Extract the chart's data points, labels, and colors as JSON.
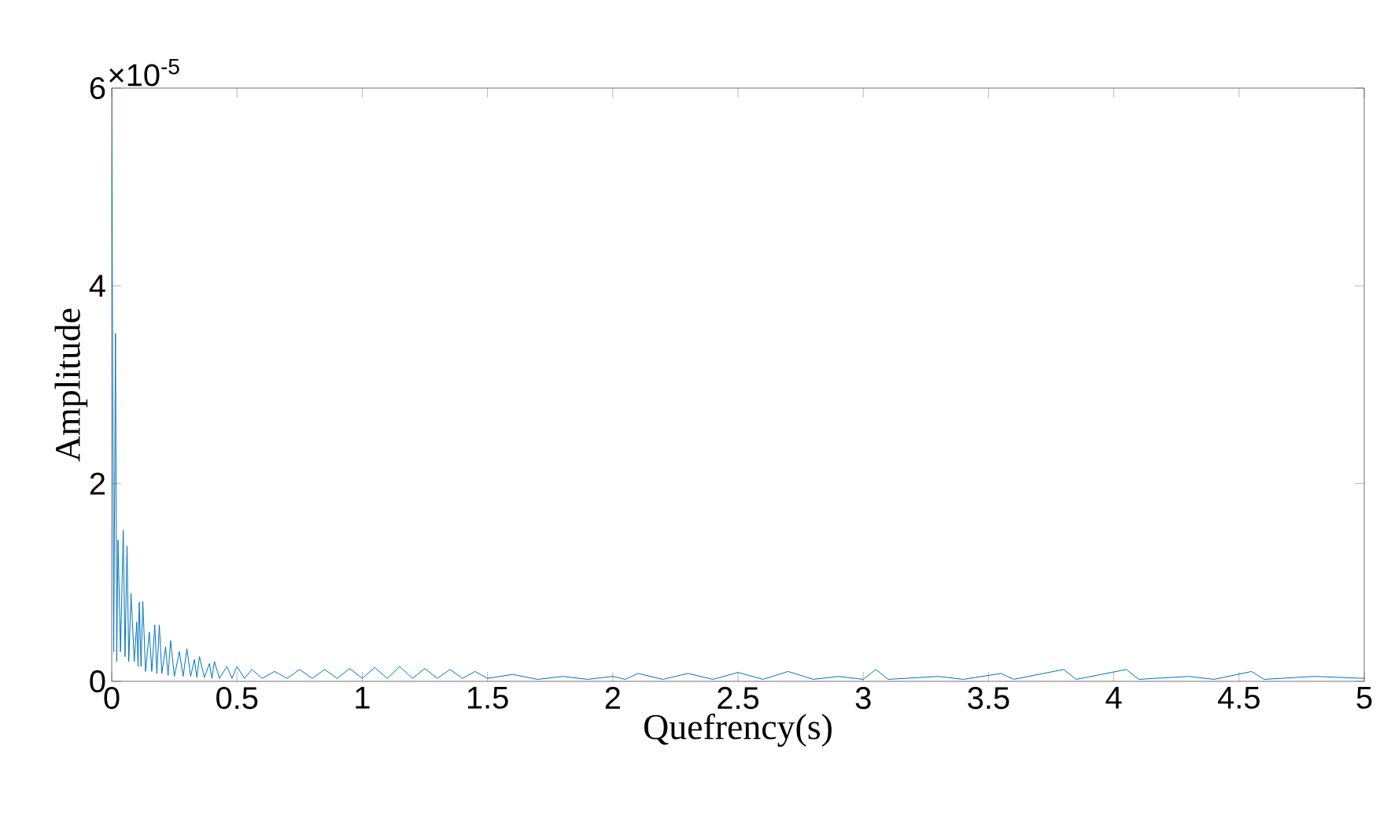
{
  "chart_data": {
    "type": "line",
    "xlabel": "Quefrency(s)",
    "ylabel": "Amplitude",
    "annotations": [
      "×10$^{-5}$"
    ],
    "xlim": [
      0,
      5
    ],
    "ylim": [
      0,
      6
    ],
    "xticks": [
      0,
      0.5,
      1,
      1.5,
      2,
      2.5,
      3,
      3.5,
      4,
      4.5,
      5
    ],
    "yticks": [
      0,
      2,
      4,
      6
    ],
    "color": "#0072bd",
    "x": [
      0,
      0.008,
      0.015,
      0.02,
      0.025,
      0.035,
      0.046,
      0.053,
      0.061,
      0.068,
      0.077,
      0.09,
      0.1,
      0.105,
      0.11,
      0.117,
      0.124,
      0.135,
      0.15,
      0.16,
      0.172,
      0.18,
      0.19,
      0.2,
      0.215,
      0.225,
      0.235,
      0.25,
      0.27,
      0.285,
      0.3,
      0.315,
      0.33,
      0.34,
      0.35,
      0.37,
      0.39,
      0.4,
      0.41,
      0.43,
      0.46,
      0.48,
      0.5,
      0.53,
      0.56,
      0.6,
      0.65,
      0.7,
      0.75,
      0.8,
      0.85,
      0.9,
      0.95,
      1.0,
      1.05,
      1.1,
      1.15,
      1.2,
      1.25,
      1.3,
      1.35,
      1.4,
      1.45,
      1.5,
      1.6,
      1.7,
      1.8,
      1.9,
      2.0,
      2.05,
      2.1,
      2.2,
      2.3,
      2.4,
      2.5,
      2.6,
      2.7,
      2.8,
      2.9,
      3.0,
      3.05,
      3.1,
      3.3,
      3.4,
      3.55,
      3.6,
      3.8,
      3.85,
      4.05,
      4.1,
      4.3,
      4.4,
      4.55,
      4.6,
      4.8,
      5.0
    ],
    "values": [
      6.0,
      0.3,
      3.52,
      0.2,
      1.43,
      0.3,
      1.53,
      0.25,
      1.37,
      0.2,
      0.89,
      0.2,
      0.6,
      0.15,
      0.8,
      0.15,
      0.81,
      0.1,
      0.5,
      0.1,
      0.57,
      0.08,
      0.57,
      0.08,
      0.35,
      0.06,
      0.41,
      0.05,
      0.3,
      0.05,
      0.33,
      0.05,
      0.22,
      0.04,
      0.25,
      0.04,
      0.18,
      0.03,
      0.2,
      0.03,
      0.15,
      0.03,
      0.15,
      0.03,
      0.12,
      0.03,
      0.1,
      0.03,
      0.12,
      0.03,
      0.12,
      0.03,
      0.13,
      0.03,
      0.14,
      0.03,
      0.15,
      0.03,
      0.13,
      0.03,
      0.12,
      0.03,
      0.1,
      0.03,
      0.07,
      0.02,
      0.05,
      0.02,
      0.05,
      0.02,
      0.08,
      0.02,
      0.08,
      0.02,
      0.09,
      0.02,
      0.1,
      0.02,
      0.05,
      0.02,
      0.12,
      0.02,
      0.05,
      0.02,
      0.08,
      0.02,
      0.12,
      0.02,
      0.12,
      0.02,
      0.05,
      0.02,
      0.1,
      0.02,
      0.05,
      0.03
    ]
  }
}
